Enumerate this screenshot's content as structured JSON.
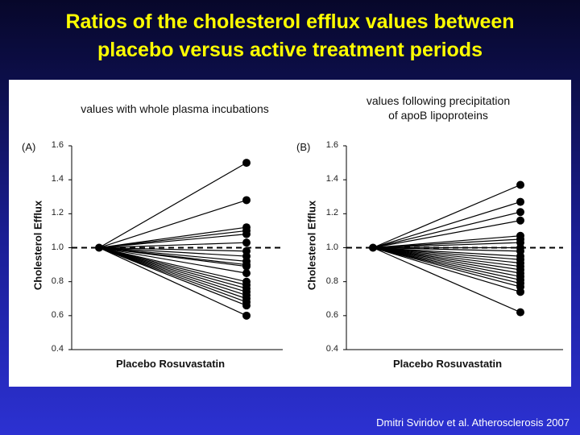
{
  "slide": {
    "title_line1": "Ratios of the cholesterol efflux values between",
    "title_line2": "placebo versus active treatment periods",
    "citation": "Dmitri Sviridov et al. Atherosclerosis 2007",
    "colors": {
      "title": "#ffff00",
      "background_top": "#07072a",
      "background_bottom": "#2c31d2"
    }
  },
  "chart_data": [
    {
      "type": "line",
      "panel_label": "(A)",
      "subtitle_line1": "values with whole plasma incubations",
      "subtitle_line2": "",
      "ylabel": "Cholesterol Efflux",
      "xlabel": "Placebo Rosuvastatin",
      "ylim": [
        0.4,
        1.6
      ],
      "yticks": [
        "1.6",
        "1.4",
        "1.2",
        "1.0",
        "0.8",
        "0.6",
        "0.4"
      ],
      "reference_line": 1.0,
      "placebo_value": 1.0,
      "rosuvastatin_values": [
        1.5,
        1.28,
        1.12,
        1.1,
        1.08,
        1.03,
        0.98,
        0.95,
        0.92,
        0.9,
        0.89,
        0.85,
        0.8,
        0.78,
        0.76,
        0.74,
        0.72,
        0.7,
        0.68,
        0.66,
        0.6
      ]
    },
    {
      "type": "line",
      "panel_label": "(B)",
      "subtitle_line1": "values following precipitation",
      "subtitle_line2": "of apoB lipoproteins",
      "ylabel": "Cholesterol Efflux",
      "xlabel": "Placebo Rosuvastatin",
      "ylim": [
        0.4,
        1.6
      ],
      "yticks": [
        "1.6",
        "1.4",
        "1.2",
        "1.0",
        "0.8",
        "0.6",
        "0.4"
      ],
      "reference_line": 1.0,
      "placebo_value": 1.0,
      "rosuvastatin_values": [
        1.37,
        1.27,
        1.21,
        1.16,
        1.07,
        1.05,
        1.03,
        1.0,
        0.98,
        0.95,
        0.93,
        0.91,
        0.89,
        0.87,
        0.85,
        0.83,
        0.81,
        0.79,
        0.77,
        0.74,
        0.62
      ]
    }
  ]
}
